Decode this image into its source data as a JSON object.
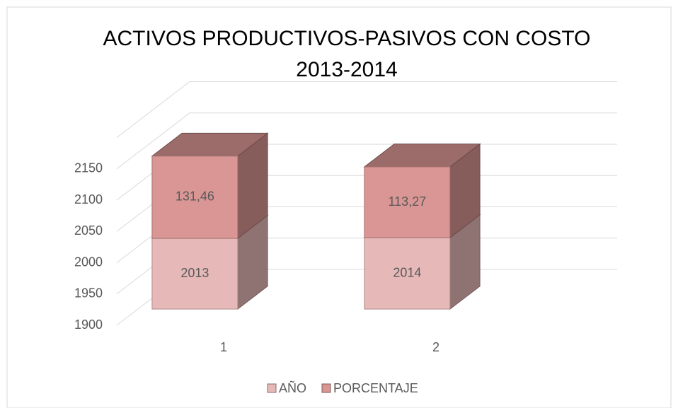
{
  "chart_data": {
    "type": "bar3d_stacked",
    "title": "ACTIVOS PRODUCTIVOS-PASIVOS CON COSTO 2013-2014",
    "categories": [
      "1",
      "2"
    ],
    "series": [
      {
        "name": "AÑO",
        "color": "#e6b9b8",
        "values": [
          2013,
          2014
        ]
      },
      {
        "name": "PORCENTAJE",
        "color": "#d99694",
        "values": [
          131.46,
          113.27
        ],
        "value_labels": [
          "131,46",
          "113,27"
        ]
      }
    ],
    "ylim": [
      1900,
      2200
    ],
    "yticks": [
      1900,
      1950,
      2000,
      2050,
      2100,
      2150
    ],
    "grid": true,
    "legend": "bottom"
  }
}
